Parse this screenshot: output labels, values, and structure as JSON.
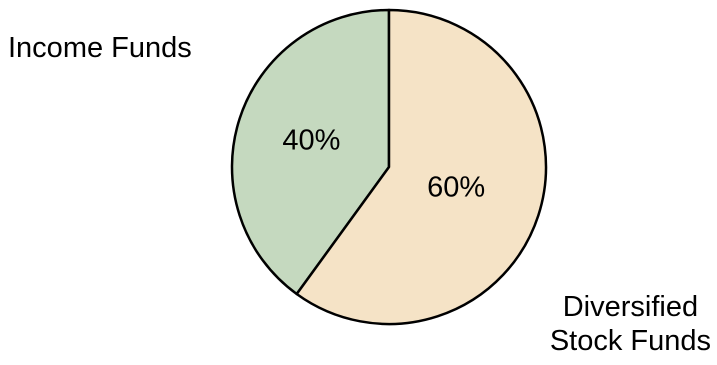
{
  "chart_data": {
    "type": "pie",
    "title": "",
    "slices": [
      {
        "label": "Income Funds",
        "value": 40,
        "value_label": "40%",
        "color": "#c5d9bf"
      },
      {
        "label": "Diversified Stock Funds",
        "label_lines": [
          "Diversified",
          "Stock Funds"
        ],
        "value": 60,
        "value_label": "60%",
        "color": "#f5e3c6"
      }
    ],
    "legend": "none",
    "outline_color": "#000000"
  }
}
